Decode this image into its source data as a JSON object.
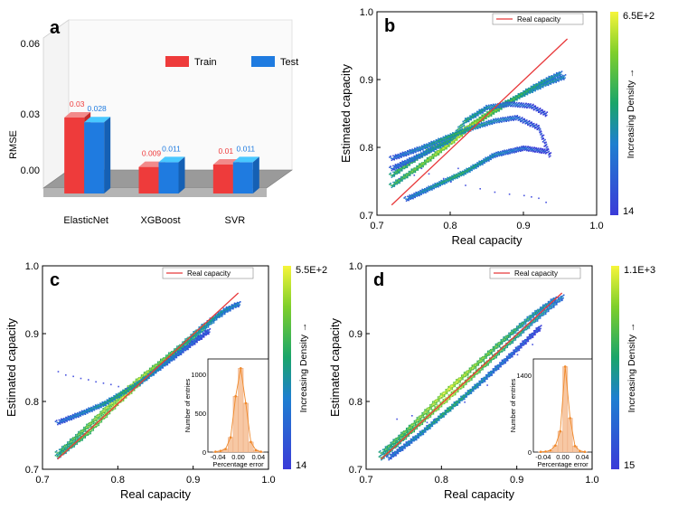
{
  "chart_data": [
    {
      "panel": "a",
      "type": "bar",
      "categories": [
        "ElasticNet",
        "XGBoost",
        "SVR"
      ],
      "series": [
        {
          "name": "Train",
          "color": "#ee3b3b",
          "values": [
            0.03,
            0.009,
            0.01
          ],
          "labels": [
            "0.03",
            "0.009",
            "0.01"
          ]
        },
        {
          "name": "Test",
          "color": "#1f7be0",
          "values": [
            0.028,
            0.011,
            0.011
          ],
          "labels": [
            "0.028",
            "0.011",
            "0.011"
          ]
        }
      ],
      "ylabel": "RMSE",
      "ytick_labels": [
        "0.06",
        "0.03",
        "0.00"
      ],
      "ylim": [
        0,
        0.06
      ],
      "legend_placement": "top-right"
    },
    {
      "panel": "b",
      "type": "scatter",
      "xlabel": "Real capacity",
      "ylabel": "Estimated capacity",
      "xlim": [
        0.7,
        1.0
      ],
      "ylim": [
        0.7,
        1.0
      ],
      "xtick_labels": [
        "0.7",
        "0.8",
        "0.9",
        "1.0"
      ],
      "ytick_labels": [
        "0.7",
        "0.8",
        "0.9",
        "1.0"
      ],
      "reference_line": {
        "name": "Real capacity",
        "x": [
          0.72,
          0.96
        ],
        "y": [
          0.715,
          0.96
        ],
        "color": "#e8393b"
      },
      "colorbar": {
        "label": "Increasing Density →",
        "max_label": "6.5E+2",
        "min_label": "14"
      },
      "density_curves": [
        {
          "x": [
            0.72,
            0.76,
            0.8,
            0.83,
            0.86,
            0.9,
            0.93,
            0.955
          ],
          "y": [
            0.745,
            0.775,
            0.808,
            0.835,
            0.858,
            0.88,
            0.895,
            0.905
          ]
        },
        {
          "x": [
            0.72,
            0.75,
            0.78,
            0.8,
            0.82,
            0.85,
            0.88,
            0.91,
            0.93,
            0.95
          ],
          "y": [
            0.76,
            0.783,
            0.803,
            0.815,
            0.828,
            0.848,
            0.868,
            0.888,
            0.9,
            0.91
          ]
        },
        {
          "x": [
            0.72,
            0.76,
            0.8,
            0.82,
            0.85,
            0.88,
            0.91,
            0.93
          ],
          "y": [
            0.77,
            0.79,
            0.812,
            0.84,
            0.86,
            0.865,
            0.862,
            0.85
          ]
        },
        {
          "x": [
            0.72,
            0.76,
            0.8,
            0.83,
            0.86,
            0.89,
            0.92,
            0.935
          ],
          "y": [
            0.785,
            0.8,
            0.818,
            0.83,
            0.84,
            0.845,
            0.83,
            0.79
          ]
        },
        {
          "x": [
            0.74,
            0.78,
            0.82,
            0.86,
            0.9,
            0.93
          ],
          "y": [
            0.725,
            0.745,
            0.765,
            0.79,
            0.8,
            0.795
          ]
        }
      ],
      "outliers": {
        "x": [
          0.73,
          0.75,
          0.77,
          0.79,
          0.8,
          0.82,
          0.84,
          0.86,
          0.88,
          0.9,
          0.91,
          0.92,
          0.93,
          0.76,
          0.81
        ],
        "y": [
          0.755,
          0.76,
          0.762,
          0.755,
          0.75,
          0.745,
          0.74,
          0.735,
          0.732,
          0.73,
          0.728,
          0.726,
          0.72,
          0.77,
          0.77
        ]
      }
    },
    {
      "panel": "c",
      "type": "scatter",
      "xlabel": "Real capacity",
      "ylabel": "Estimated capacity",
      "xlim": [
        0.7,
        1.0
      ],
      "ylim": [
        0.7,
        1.0
      ],
      "xtick_labels": [
        "0.7",
        "0.8",
        "0.9",
        "1.0"
      ],
      "ytick_labels": [
        "0.7",
        "0.8",
        "0.9",
        "1.0"
      ],
      "reference_line": {
        "name": "Real capacity",
        "x": [
          0.72,
          0.96
        ],
        "y": [
          0.715,
          0.96
        ],
        "color": "#e8393b"
      },
      "colorbar": {
        "label": "Increasing Density →",
        "max_label": "5.5E+2",
        "min_label": "14"
      },
      "density_curves": [
        {
          "x": [
            0.72,
            0.76,
            0.8,
            0.84,
            0.88,
            0.91,
            0.93,
            0.95,
            0.96
          ],
          "y": [
            0.72,
            0.755,
            0.8,
            0.84,
            0.875,
            0.905,
            0.925,
            0.94,
            0.945
          ]
        },
        {
          "x": [
            0.72,
            0.76,
            0.8,
            0.84,
            0.88,
            0.91,
            0.94,
            0.96
          ],
          "y": [
            0.725,
            0.765,
            0.808,
            0.845,
            0.88,
            0.91,
            0.935,
            0.945
          ]
        },
        {
          "x": [
            0.72,
            0.75,
            0.78,
            0.8,
            0.83,
            0.86,
            0.89,
            0.92
          ],
          "y": [
            0.77,
            0.783,
            0.797,
            0.81,
            0.83,
            0.855,
            0.88,
            0.905
          ]
        }
      ],
      "outliers": {
        "x": [
          0.72,
          0.73,
          0.74,
          0.75,
          0.76,
          0.77,
          0.78,
          0.79,
          0.8,
          0.81
        ],
        "y": [
          0.845,
          0.84,
          0.838,
          0.835,
          0.833,
          0.83,
          0.828,
          0.826,
          0.823,
          0.82
        ]
      },
      "inset": {
        "type": "bar",
        "xlabel": "Percentage error",
        "ylabel": "Number of entries",
        "xtick_labels": [
          "-0.04",
          "0.00",
          "0.04"
        ],
        "ytick_labels": [
          "0",
          "500",
          "1000"
        ],
        "xlim": [
          -0.06,
          0.06
        ],
        "ylim": [
          0,
          1200
        ],
        "bins": [
          -0.045,
          -0.035,
          -0.025,
          -0.015,
          -0.005,
          0.005,
          0.015,
          0.025,
          0.035,
          0.045
        ],
        "counts": [
          5,
          15,
          40,
          190,
          720,
          1080,
          630,
          130,
          25,
          5
        ]
      }
    },
    {
      "panel": "d",
      "type": "scatter",
      "xlabel": "Real capacity",
      "ylabel": "Estimated capacity",
      "xlim": [
        0.7,
        1.0
      ],
      "ylim": [
        0.7,
        1.0
      ],
      "xtick_labels": [
        "0.7",
        "0.8",
        "0.9",
        "1.0"
      ],
      "ytick_labels": [
        "0.7",
        "0.8",
        "0.9",
        "1.0"
      ],
      "reference_line": {
        "name": "Real capacity",
        "x": [
          0.72,
          0.96
        ],
        "y": [
          0.715,
          0.96
        ],
        "color": "#e8393b"
      },
      "colorbar": {
        "label": "Increasing Density →",
        "max_label": "1.1E+3",
        "min_label": "15"
      },
      "density_curves": [
        {
          "x": [
            0.72,
            0.76,
            0.8,
            0.84,
            0.88,
            0.92,
            0.96
          ],
          "y": [
            0.718,
            0.758,
            0.798,
            0.838,
            0.878,
            0.918,
            0.955
          ]
        },
        {
          "x": [
            0.72,
            0.76,
            0.8,
            0.84,
            0.88,
            0.92,
            0.95
          ],
          "y": [
            0.725,
            0.765,
            0.81,
            0.85,
            0.89,
            0.928,
            0.952
          ]
        },
        {
          "x": [
            0.73,
            0.77,
            0.81,
            0.85,
            0.89,
            0.93
          ],
          "y": [
            0.718,
            0.752,
            0.79,
            0.828,
            0.868,
            0.91
          ]
        }
      ],
      "outliers": {
        "x": [
          0.74,
          0.76,
          0.78,
          0.79,
          0.83,
          0.86,
          0.9,
          0.92
        ],
        "y": [
          0.775,
          0.78,
          0.77,
          0.775,
          0.8,
          0.825,
          0.87,
          0.885
        ]
      },
      "inset": {
        "type": "bar",
        "xlabel": "Percentage error",
        "ylabel": "Number of entries",
        "xtick_labels": [
          "-0.04",
          "0.00",
          "0.04"
        ],
        "ytick_labels": [
          "0",
          "1400"
        ],
        "xlim": [
          -0.06,
          0.06
        ],
        "ylim": [
          0,
          1700
        ],
        "bins": [
          -0.045,
          -0.035,
          -0.025,
          -0.015,
          -0.005,
          0.005,
          0.015,
          0.025,
          0.035,
          0.045
        ],
        "counts": [
          5,
          10,
          30,
          120,
          380,
          1560,
          620,
          110,
          20,
          5
        ]
      }
    }
  ]
}
